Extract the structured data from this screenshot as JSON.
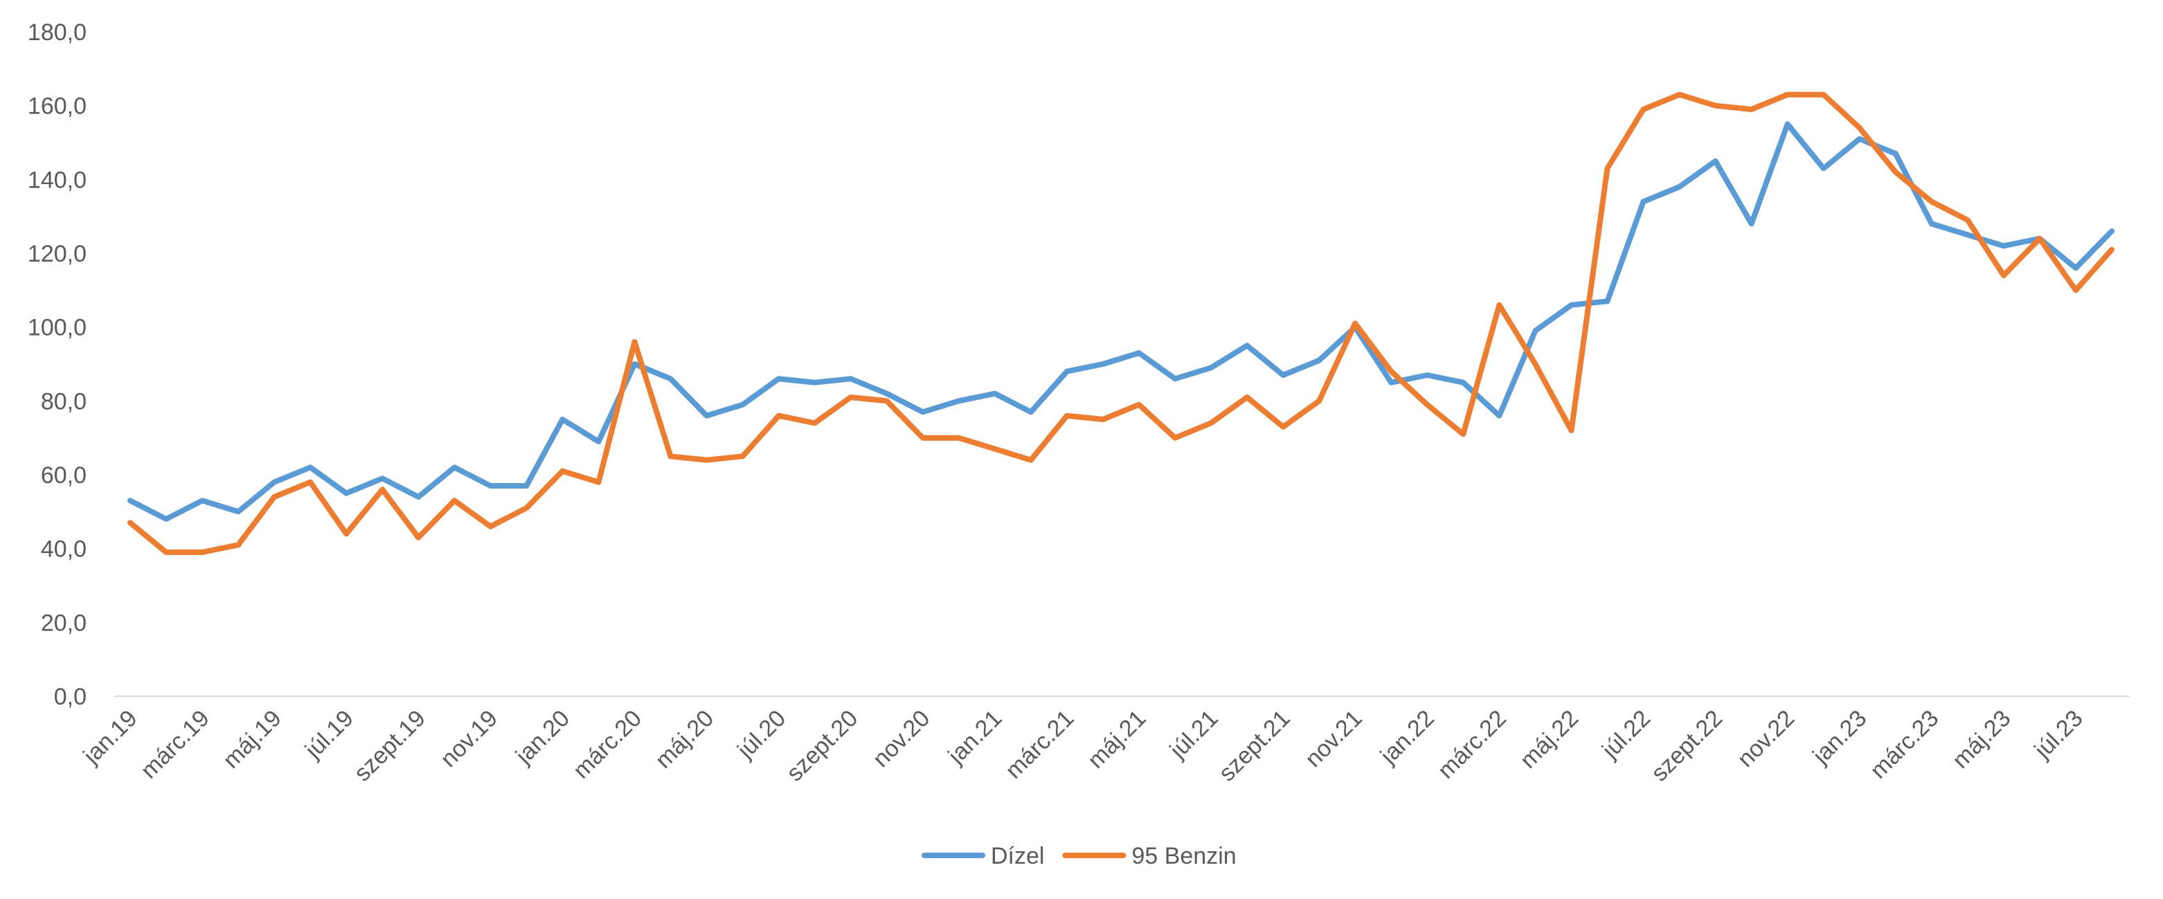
{
  "chart_data": {
    "type": "line",
    "title": "",
    "xlabel": "",
    "ylabel": "",
    "ylim": [
      0,
      180
    ],
    "ytick_step": 20,
    "ytick_labels": [
      "0,0",
      "20,0",
      "40,0",
      "60,0",
      "80,0",
      "100,0",
      "120,0",
      "140,0",
      "160,0",
      "180,0"
    ],
    "grid": false,
    "legend_position": "bottom",
    "x": [
      "jan.19",
      "febr.19",
      "márc.19",
      "ápr.19",
      "máj.19",
      "jún.19",
      "júl.19",
      "aug.19",
      "szept.19",
      "okt.19",
      "nov.19",
      "dec.19",
      "jan.20",
      "febr.20",
      "márc.20",
      "ápr.20",
      "máj.20",
      "jún.20",
      "júl.20",
      "aug.20",
      "szept.20",
      "okt.20",
      "nov.20",
      "dec.20",
      "jan.21",
      "febr.21",
      "márc.21",
      "ápr.21",
      "máj.21",
      "jún.21",
      "júl.21",
      "aug.21",
      "szept.21",
      "okt.21",
      "nov.21",
      "dec.21",
      "jan.22",
      "febr.22",
      "márc.22",
      "ápr.22",
      "máj.22",
      "jún.22",
      "júl.22",
      "aug.22",
      "szept.22",
      "okt.22",
      "nov.22",
      "dec.22",
      "jan.23",
      "febr.23",
      "márc.23",
      "ápr.23",
      "máj.23",
      "jún.23",
      "júl.23",
      "aug.23"
    ],
    "x_tick_labels": [
      "jan.19",
      "márc.19",
      "máj.19",
      "júl.19",
      "szept.19",
      "nov.19",
      "jan.20",
      "márc.20",
      "máj.20",
      "júl.20",
      "szept.20",
      "nov.20",
      "jan.21",
      "márc.21",
      "máj.21",
      "júl.21",
      "szept.21",
      "nov.21",
      "jan.22",
      "márc.22",
      "máj.22",
      "júl.22",
      "szept.22",
      "nov.22",
      "jan.23",
      "márc.23",
      "máj.23",
      "júl.23"
    ],
    "series": [
      {
        "name": "Dízel",
        "color": "#5B9BD5",
        "values": [
          53,
          48,
          53,
          50,
          58,
          62,
          55,
          59,
          54,
          62,
          57,
          57,
          75,
          69,
          90,
          86,
          76,
          79,
          86,
          85,
          86,
          82,
          77,
          80,
          82,
          77,
          88,
          90,
          93,
          86,
          89,
          95,
          87,
          91,
          100,
          85,
          87,
          85,
          76,
          99,
          106,
          107,
          134,
          138,
          145,
          128,
          155,
          143,
          151,
          147,
          128,
          125,
          122,
          124,
          116,
          126
        ]
      },
      {
        "name": "95 Benzin",
        "color": "#ED7D31",
        "values": [
          47,
          39,
          39,
          41,
          54,
          58,
          44,
          56,
          43,
          53,
          46,
          51,
          61,
          58,
          96,
          65,
          64,
          65,
          76,
          74,
          81,
          80,
          70,
          70,
          67,
          64,
          76,
          75,
          79,
          70,
          74,
          81,
          73,
          80,
          101,
          88,
          79,
          71,
          106,
          90,
          72,
          143,
          159,
          163,
          160,
          159,
          163,
          163,
          154,
          142,
          134,
          129,
          114,
          124,
          110,
          121
        ]
      }
    ]
  }
}
